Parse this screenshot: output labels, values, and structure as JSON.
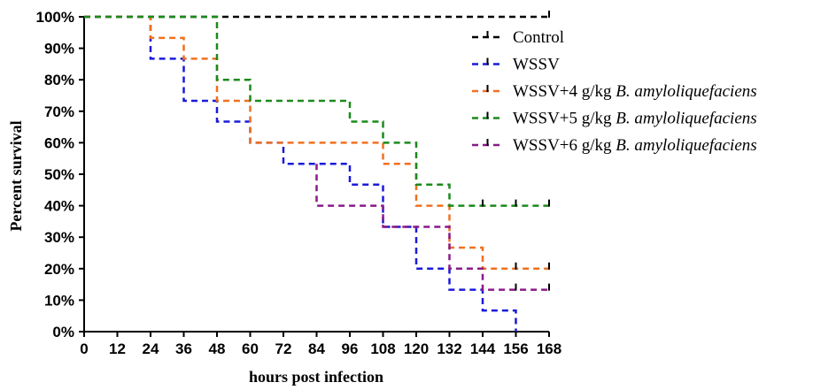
{
  "chart_data": {
    "type": "line",
    "step": true,
    "xlabel": "hours post infection",
    "ylabel": "Percent survival",
    "xlim": [
      0,
      168
    ],
    "ylim": [
      0,
      100
    ],
    "x_ticks": [
      "0",
      "12",
      "24",
      "36",
      "48",
      "60",
      "72",
      "84",
      "96",
      "108",
      "120",
      "132",
      "144",
      "156",
      "168"
    ],
    "y_ticks": [
      "0%",
      "10%",
      "20%",
      "30%",
      "40%",
      "50%",
      "60%",
      "70%",
      "80%",
      "90%",
      "100%"
    ],
    "grid": false,
    "legend_position": "top-right",
    "series": [
      {
        "name": "Control",
        "color": "#000000",
        "points": [
          [
            0,
            100
          ],
          [
            168,
            100
          ]
        ],
        "censored": [
          168
        ]
      },
      {
        "name": "WSSV",
        "color": "#1a1adb",
        "points": [
          [
            0,
            100
          ],
          [
            24,
            86.7
          ],
          [
            36,
            73.3
          ],
          [
            48,
            66.7
          ],
          [
            60,
            60
          ],
          [
            72,
            53.3
          ],
          [
            96,
            46.7
          ],
          [
            108,
            33.3
          ],
          [
            120,
            20
          ],
          [
            132,
            13.3
          ],
          [
            144,
            6.7
          ],
          [
            156,
            0
          ]
        ],
        "censored": []
      },
      {
        "name": "WSSV+4 g/kg B. amyloliquefaciens",
        "color": "#f07020",
        "points": [
          [
            0,
            100
          ],
          [
            24,
            93.3
          ],
          [
            36,
            86.7
          ],
          [
            48,
            73.3
          ],
          [
            60,
            60
          ],
          [
            108,
            53.3
          ],
          [
            120,
            40
          ],
          [
            132,
            26.7
          ],
          [
            144,
            20
          ],
          [
            168,
            20
          ]
        ],
        "censored": [
          156,
          168
        ]
      },
      {
        "name": "WSSV+5 g/kg B. amyloliquefaciens",
        "color": "#1a8a1a",
        "points": [
          [
            0,
            100
          ],
          [
            48,
            80
          ],
          [
            60,
            73.3
          ],
          [
            96,
            66.7
          ],
          [
            108,
            60
          ],
          [
            120,
            46.7
          ],
          [
            132,
            40
          ],
          [
            168,
            40
          ]
        ],
        "censored": [
          144,
          156,
          168
        ]
      },
      {
        "name": "WSSV+6 g/kg B. amyloliquefaciens",
        "color": "#8a1a8a",
        "points": [
          [
            84,
            53.3
          ],
          [
            84,
            40
          ],
          [
            108,
            40
          ],
          [
            108,
            33.3
          ],
          [
            132,
            33.3
          ],
          [
            132,
            20
          ],
          [
            144,
            20
          ],
          [
            144,
            13.3
          ],
          [
            168,
            13.3
          ]
        ],
        "censored": [
          156,
          168
        ]
      }
    ],
    "legend": [
      {
        "prefix": "Control",
        "italic": ""
      },
      {
        "prefix": "WSSV",
        "italic": ""
      },
      {
        "prefix": "WSSV+4 g/kg ",
        "italic": "B. amyloliquefaciens"
      },
      {
        "prefix": "WSSV+5 g/kg ",
        "italic": "B. amyloliquefaciens"
      },
      {
        "prefix": "WSSV+6 g/kg ",
        "italic": "B. amyloliquefaciens"
      }
    ]
  }
}
